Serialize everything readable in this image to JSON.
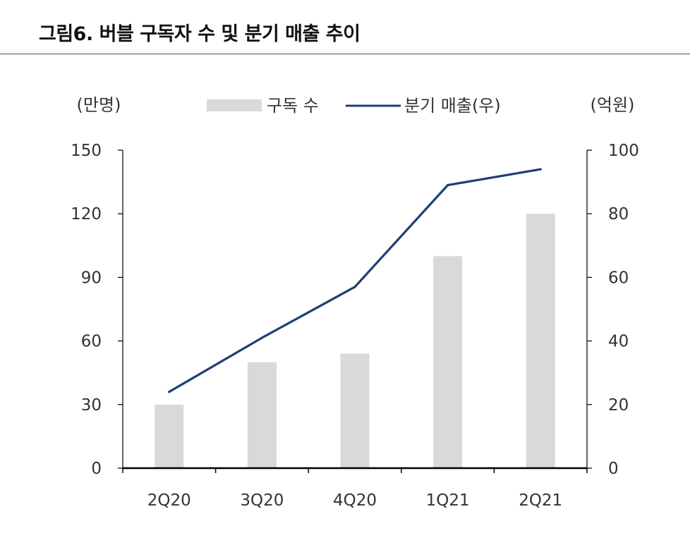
{
  "title": "그림6. 버블 구독자 수 및 분기 매출 추이",
  "chart_data": {
    "type": "bar+line",
    "categories": [
      "2Q20",
      "3Q20",
      "4Q20",
      "1Q21",
      "2Q21"
    ],
    "series": [
      {
        "name": "구독 수",
        "type": "bar",
        "axis": "left",
        "values": [
          30,
          50,
          54,
          100,
          120
        ]
      },
      {
        "name": "분기 매출(우)",
        "type": "line",
        "axis": "right",
        "values": [
          24,
          41,
          57,
          89,
          94
        ]
      }
    ],
    "y_left": {
      "label": "(만명)",
      "min": 0,
      "max": 150,
      "ticks": [
        0,
        30,
        60,
        90,
        120,
        150
      ]
    },
    "y_right": {
      "label": "(억원)",
      "min": 0,
      "max": 100,
      "ticks": [
        0,
        20,
        40,
        60,
        80,
        100
      ]
    },
    "legend": {
      "position": "top-center"
    },
    "colors": {
      "bar": "#d9d9d9",
      "line": "#1f3f73",
      "axis": "#000000"
    }
  }
}
